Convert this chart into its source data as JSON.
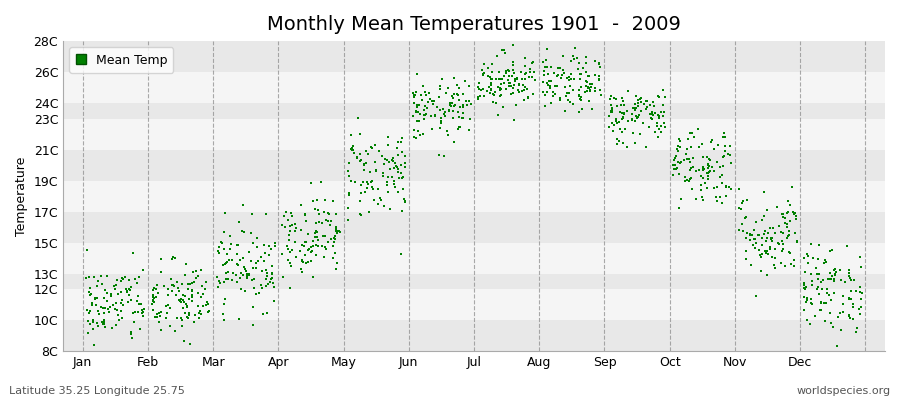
{
  "title": "Monthly Mean Temperatures 1901  -  2009",
  "ylabel": "Temperature",
  "footer_left": "Latitude 35.25 Longitude 25.75",
  "footer_right": "worldspecies.org",
  "legend_label": "Mean Temp",
  "marker_color": "#008000",
  "marker_size": 4,
  "ytick_labels": [
    "8C",
    "10C",
    "12C",
    "13C",
    "15C",
    "17C",
    "19C",
    "21C",
    "23C",
    "24C",
    "26C",
    "28C"
  ],
  "ytick_values": [
    8,
    10,
    12,
    13,
    15,
    17,
    19,
    21,
    23,
    24,
    26,
    28
  ],
  "ymin": 8,
  "ymax": 28,
  "months": [
    "Jan",
    "Feb",
    "Mar",
    "Apr",
    "May",
    "Jun",
    "Jul",
    "Aug",
    "Sep",
    "Oct",
    "Nov",
    "Dec"
  ],
  "monthly_mean": [
    11.0,
    11.2,
    13.5,
    15.5,
    19.5,
    23.5,
    25.5,
    25.2,
    23.2,
    20.0,
    15.5,
    12.0
  ],
  "monthly_std": [
    1.3,
    1.3,
    1.4,
    1.3,
    1.5,
    1.0,
    0.9,
    0.9,
    0.9,
    1.3,
    1.4,
    1.4
  ],
  "n_years": 109,
  "background_color": "#ffffff",
  "plot_bg_color": "#ffffff",
  "band_colors": [
    "#e8e8e8",
    "#f5f5f5"
  ],
  "grid_color": "#888888",
  "title_fontsize": 14,
  "axis_fontsize": 9,
  "footer_fontsize": 8
}
